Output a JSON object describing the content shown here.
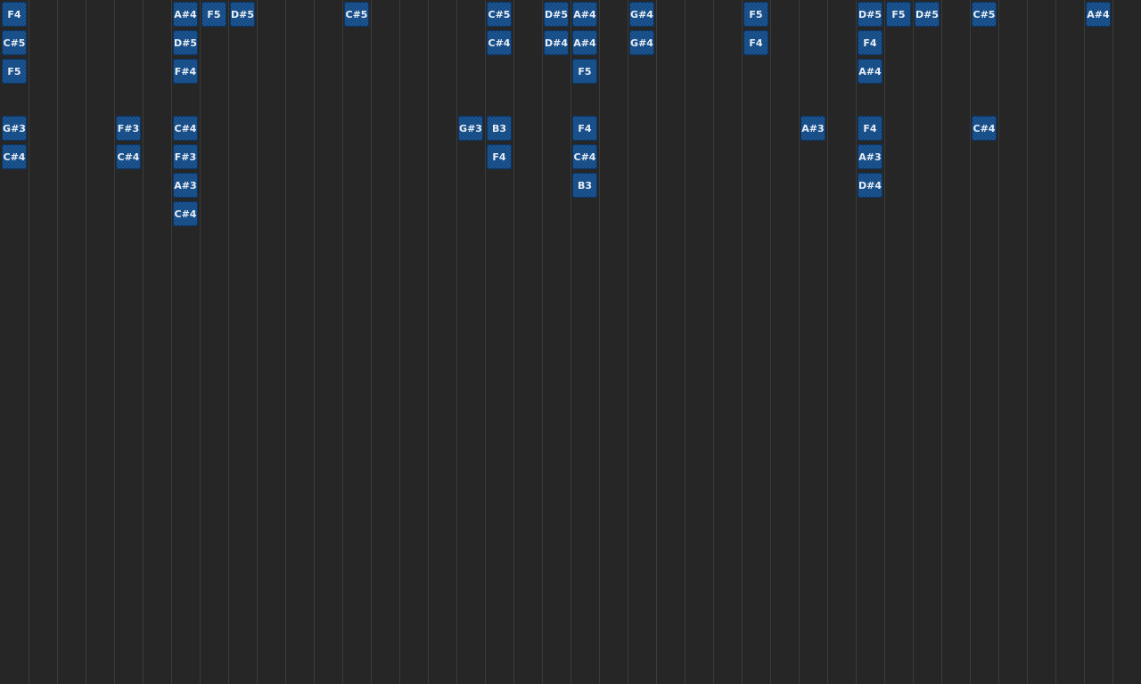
{
  "grid": {
    "columns": 40,
    "background": "#262627",
    "note_color": "#124a86"
  },
  "notes": [
    {
      "col": 0,
      "row": 0,
      "label": "F4"
    },
    {
      "col": 0,
      "row": 1,
      "label": "C#5"
    },
    {
      "col": 0,
      "row": 2,
      "label": "F5"
    },
    {
      "col": 0,
      "row": 4,
      "label": "G#3"
    },
    {
      "col": 0,
      "row": 5,
      "label": "C#4"
    },
    {
      "col": 4,
      "row": 4,
      "label": "F#3"
    },
    {
      "col": 4,
      "row": 5,
      "label": "C#4"
    },
    {
      "col": 6,
      "row": 0,
      "label": "A#4"
    },
    {
      "col": 6,
      "row": 1,
      "label": "D#5"
    },
    {
      "col": 6,
      "row": 2,
      "label": "F#4"
    },
    {
      "col": 6,
      "row": 4,
      "label": "C#4"
    },
    {
      "col": 6,
      "row": 5,
      "label": "F#3"
    },
    {
      "col": 6,
      "row": 6,
      "label": "A#3"
    },
    {
      "col": 6,
      "row": 7,
      "label": "C#4"
    },
    {
      "col": 7,
      "row": 0,
      "label": "F5"
    },
    {
      "col": 8,
      "row": 0,
      "label": "D#5"
    },
    {
      "col": 12,
      "row": 0,
      "label": "C#5"
    },
    {
      "col": 16,
      "row": 4,
      "label": "G#3"
    },
    {
      "col": 17,
      "row": 0,
      "label": "C#5"
    },
    {
      "col": 17,
      "row": 1,
      "label": "C#4"
    },
    {
      "col": 17,
      "row": 4,
      "label": "B3"
    },
    {
      "col": 17,
      "row": 5,
      "label": "F4"
    },
    {
      "col": 19,
      "row": 0,
      "label": "D#5"
    },
    {
      "col": 19,
      "row": 1,
      "label": "D#4"
    },
    {
      "col": 20,
      "row": 0,
      "label": "A#4"
    },
    {
      "col": 20,
      "row": 1,
      "label": "A#4"
    },
    {
      "col": 20,
      "row": 2,
      "label": "F5"
    },
    {
      "col": 20,
      "row": 4,
      "label": "F4"
    },
    {
      "col": 20,
      "row": 5,
      "label": "C#4"
    },
    {
      "col": 20,
      "row": 6,
      "label": "B3"
    },
    {
      "col": 22,
      "row": 0,
      "label": "G#4"
    },
    {
      "col": 22,
      "row": 1,
      "label": "G#4"
    },
    {
      "col": 26,
      "row": 0,
      "label": "F5"
    },
    {
      "col": 26,
      "row": 1,
      "label": "F4"
    },
    {
      "col": 28,
      "row": 4,
      "label": "A#3"
    },
    {
      "col": 30,
      "row": 0,
      "label": "D#5"
    },
    {
      "col": 30,
      "row": 1,
      "label": "F4"
    },
    {
      "col": 30,
      "row": 2,
      "label": "A#4"
    },
    {
      "col": 30,
      "row": 4,
      "label": "F4"
    },
    {
      "col": 30,
      "row": 5,
      "label": "A#3"
    },
    {
      "col": 30,
      "row": 6,
      "label": "D#4"
    },
    {
      "col": 31,
      "row": 0,
      "label": "F5"
    },
    {
      "col": 32,
      "row": 0,
      "label": "D#5"
    },
    {
      "col": 34,
      "row": 0,
      "label": "C#5"
    },
    {
      "col": 34,
      "row": 4,
      "label": "C#4"
    },
    {
      "col": 38,
      "row": 0,
      "label": "A#4"
    }
  ]
}
